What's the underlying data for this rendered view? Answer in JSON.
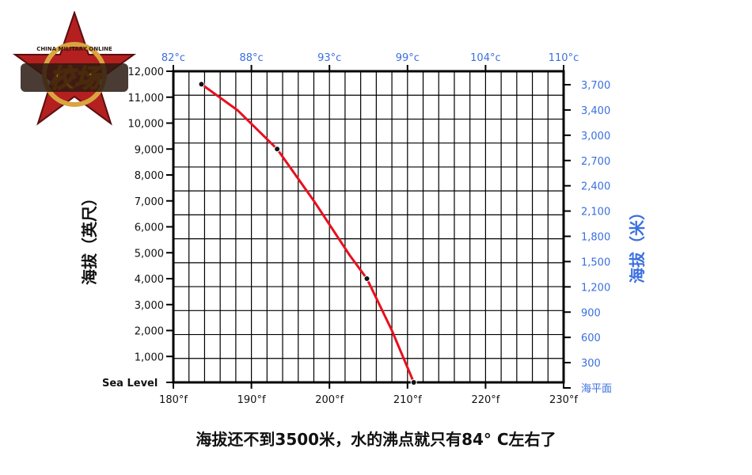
{
  "logo": {
    "ring_text": "CHINA MILITARY ONLINE",
    "main_text": "校场",
    "colors": {
      "star": "#b3201f",
      "gold": "#d9a441",
      "dark": "#2a1a10"
    }
  },
  "chart_data": {
    "type": "line",
    "title": "",
    "caption": "海拔还不到3500米，水的沸点就只有84° C左右了",
    "ylabel_left": "海拔（英尺）",
    "ylabel_right": "海拔（米）",
    "ylim_left": [
      0,
      12000
    ],
    "xlim_f": [
      180,
      230
    ],
    "y_left_ticks": [
      "12,000",
      "11,000",
      "10,000",
      "9,000",
      "8,000",
      "7,000",
      "6,000",
      "5,000",
      "4,000",
      "3,000",
      "2,000",
      "1,000",
      "Sea Level"
    ],
    "y_right_ticks": [
      "3,700",
      "3,400",
      "3,000",
      "2,700",
      "2,400",
      "2,100",
      "1,800",
      "1,500",
      "1,200",
      "900",
      "600",
      "300",
      "海平面"
    ],
    "x_bottom_ticks": [
      "180°f",
      "190°f",
      "200°f",
      "210°f",
      "220°f",
      "230°f"
    ],
    "x_top_ticks": [
      "82°c",
      "88°c",
      "93°c",
      "99°c",
      "104°c",
      "110°c"
    ],
    "grid": true,
    "series": [
      {
        "x": [
          183.6,
          188.2,
          193.3,
          198.0,
          202.6,
          204.8,
          208.0,
          210.8
        ],
        "y": [
          11500,
          10500,
          9000,
          7000,
          4900,
          4000,
          2000,
          0
        ],
        "markers_at": [
          0,
          2,
          5,
          7
        ]
      }
    ],
    "colors": {
      "line": "#e8101e",
      "right_axis": "#3b6fe0",
      "top_axis": "#3b6fe0",
      "frame": "#000000",
      "grid": "#000000"
    }
  }
}
